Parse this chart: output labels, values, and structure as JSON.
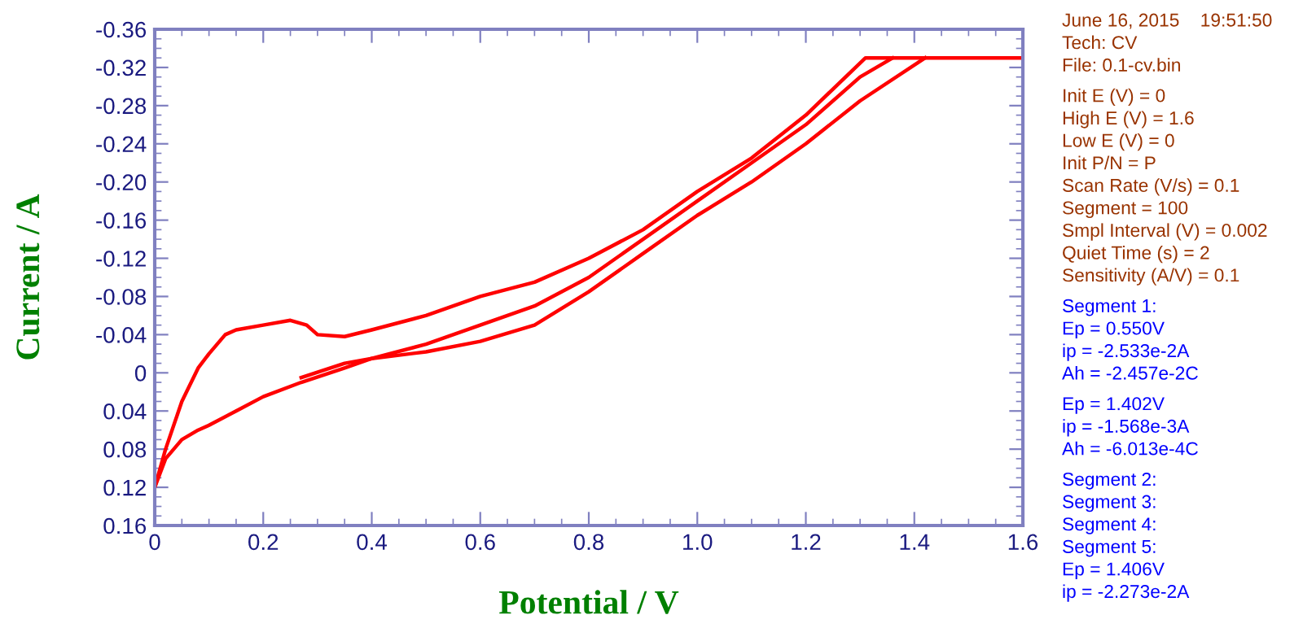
{
  "chart_data": {
    "type": "line",
    "xlabel": "Potential / V",
    "ylabel": "Current / A",
    "series": [
      {
        "color": "#ff0000",
        "x": [
          0,
          0.02,
          0.05,
          0.08,
          0.1,
          0.13,
          0.15,
          0.2,
          0.25,
          0.28,
          0.3,
          0.35,
          0.4,
          0.5,
          0.6,
          0.7,
          0.8,
          0.9,
          1.0,
          1.1,
          1.2,
          1.31,
          1.4,
          1.5,
          1.6
        ],
        "values": [
          0.12,
          0.08,
          0.03,
          -0.005,
          -0.02,
          -0.04,
          -0.045,
          -0.05,
          -0.055,
          -0.05,
          -0.04,
          -0.038,
          -0.045,
          -0.06,
          -0.08,
          -0.095,
          -0.12,
          -0.15,
          -0.19,
          -0.225,
          -0.27,
          -0.33,
          -0.33,
          -0.33,
          -0.33
        ]
      },
      {
        "color": "#ff0000",
        "x": [
          0,
          0.02,
          0.05,
          0.08,
          0.1,
          0.15,
          0.2,
          0.27,
          0.35,
          0.4,
          0.5,
          0.6,
          0.7,
          0.8,
          0.9,
          1.0,
          1.1,
          1.2,
          1.3,
          1.36
        ],
        "values": [
          0.12,
          0.09,
          0.07,
          0.06,
          0.055,
          0.04,
          0.025,
          0.01,
          -0.005,
          -0.015,
          -0.03,
          -0.05,
          -0.07,
          -0.1,
          -0.14,
          -0.18,
          -0.22,
          -0.26,
          -0.31,
          -0.33
        ]
      },
      {
        "color": "#ff0000",
        "x": [
          0.27,
          0.35,
          0.4,
          0.5,
          0.6,
          0.7,
          0.8,
          0.9,
          1.0,
          1.1,
          1.2,
          1.3,
          1.42
        ],
        "values": [
          0.005,
          -0.01,
          -0.015,
          -0.022,
          -0.033,
          -0.05,
          -0.085,
          -0.125,
          -0.165,
          -0.2,
          -0.24,
          -0.285,
          -0.33
        ]
      }
    ],
    "xlim": [
      0,
      1.6
    ],
    "ylim": [
      0.16,
      -0.36
    ],
    "xticks": [
      {
        "value": 0,
        "label": "0"
      },
      {
        "value": 0.2,
        "label": "0.2"
      },
      {
        "value": 0.4,
        "label": "0.4"
      },
      {
        "value": 0.6,
        "label": "0.6"
      },
      {
        "value": 0.8,
        "label": "0.8"
      },
      {
        "value": 1.0,
        "label": "1.0"
      },
      {
        "value": 1.2,
        "label": "1.2"
      },
      {
        "value": 1.4,
        "label": "1.4"
      },
      {
        "value": 1.6,
        "label": "1.6"
      }
    ],
    "yticks": [
      {
        "value": -0.36,
        "label": "-0.36"
      },
      {
        "value": -0.32,
        "label": "-0.32"
      },
      {
        "value": -0.28,
        "label": "-0.28"
      },
      {
        "value": -0.24,
        "label": "-0.24"
      },
      {
        "value": -0.2,
        "label": "-0.20"
      },
      {
        "value": -0.16,
        "label": "-0.16"
      },
      {
        "value": -0.12,
        "label": "-0.12"
      },
      {
        "value": -0.08,
        "label": "-0.08"
      },
      {
        "value": -0.04,
        "label": "-0.04"
      },
      {
        "value": 0,
        "label": "0"
      },
      {
        "value": 0.04,
        "label": "0.04"
      },
      {
        "value": 0.08,
        "label": "0.08"
      },
      {
        "value": 0.12,
        "label": "0.12"
      },
      {
        "value": 0.16,
        "label": "0.16"
      }
    ],
    "grid": false,
    "marker": "none",
    "line_style": "solid",
    "annotations": [
      "June 16, 2015    19:51:50",
      "Tech: CV",
      "File: 0.1-cv.bin",
      "Init E (V) = 0",
      "High E (V) = 1.6",
      "Low E (V) = 0",
      "Init P/N = P",
      "Scan Rate (V/s) = 0.1",
      "Segment = 100",
      "Smpl Interval (V) = 0.002",
      "Quiet Time (s) = 2",
      "Sensitivity (A/V) = 0.1",
      "Segment 1:",
      "Ep = 0.550V",
      "ip = -2.533e-2A",
      "Ah = -2.457e-2C",
      "Ep = 1.402V",
      "ip = -1.568e-3A",
      "Ah = -6.013e-4C",
      "Segment 2:",
      "Segment 3:",
      "Segment 4:",
      "Segment 5:",
      "Ep = 1.406V",
      "ip = -2.273e-2A"
    ]
  }
}
